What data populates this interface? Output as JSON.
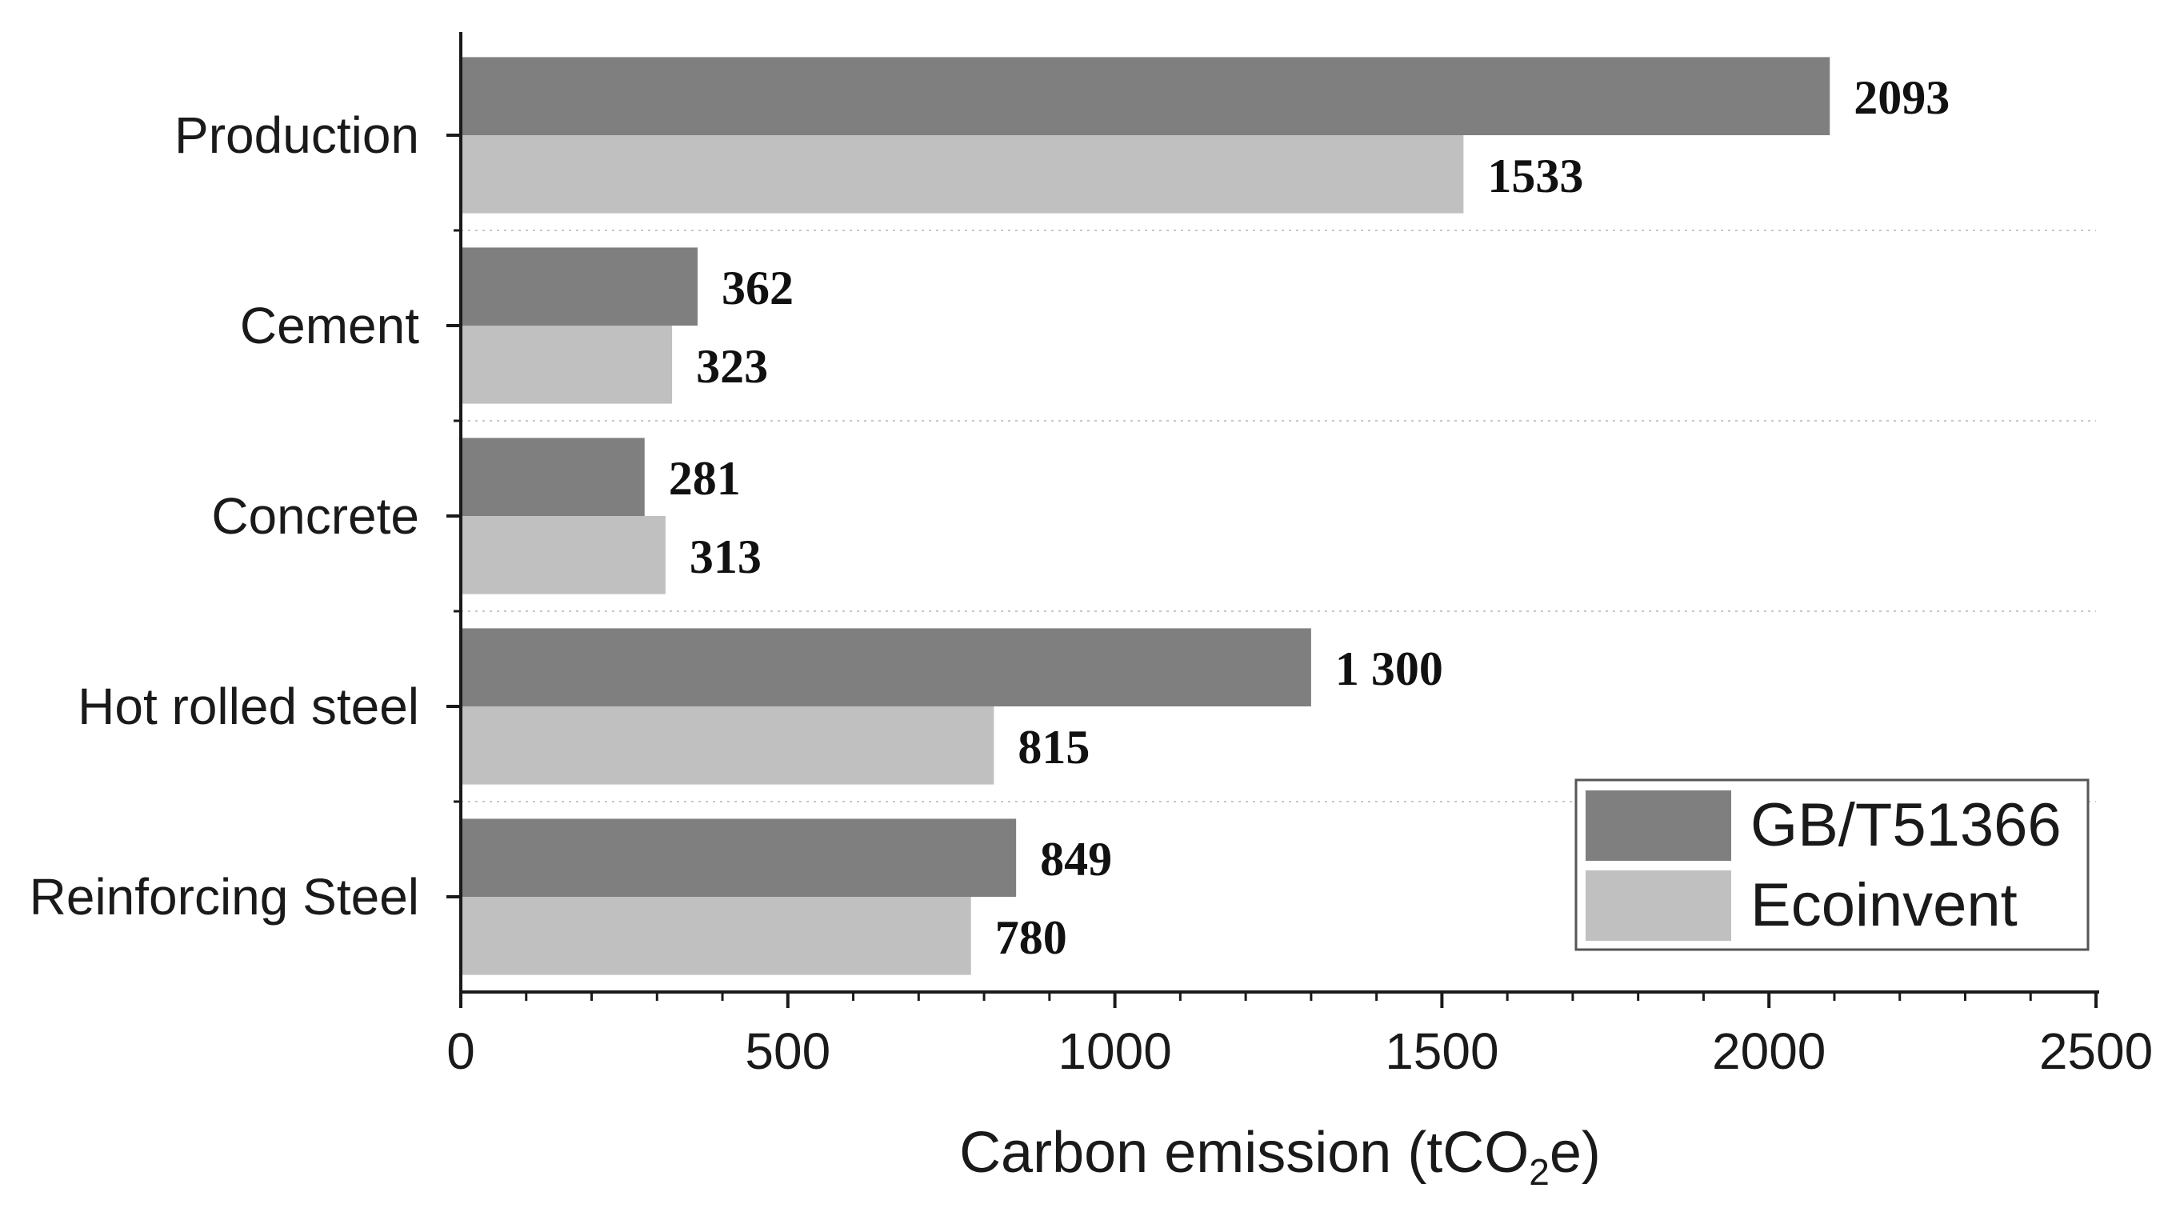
{
  "chart_data": {
    "type": "bar",
    "orientation": "horizontal",
    "categories": [
      "Production",
      "Cement",
      "Concrete",
      "Hot rolled steel",
      "Reinforcing Steel"
    ],
    "series": [
      {
        "name": "GB/T51366",
        "color": "#7f7f7f",
        "values": [
          2093,
          362,
          281,
          1300,
          849
        ],
        "labels": [
          "2093",
          "362",
          "281",
          "1 300",
          "849"
        ]
      },
      {
        "name": "Ecoinvent",
        "color": "#c0c0c0",
        "values": [
          1533,
          323,
          313,
          815,
          780
        ],
        "labels": [
          "1533",
          "323",
          "313",
          "815",
          "780"
        ]
      }
    ],
    "xlabel_main": "Carbon emission (tCO",
    "xlabel_sub": "2",
    "xlabel_tail": "e)",
    "ylabel": "",
    "title": "",
    "xlim": [
      0,
      2500
    ],
    "xticks": [
      0,
      500,
      1000,
      1500,
      2000,
      2500
    ],
    "grid": "dotted separators between categories",
    "legend_position": "bottom-right"
  }
}
